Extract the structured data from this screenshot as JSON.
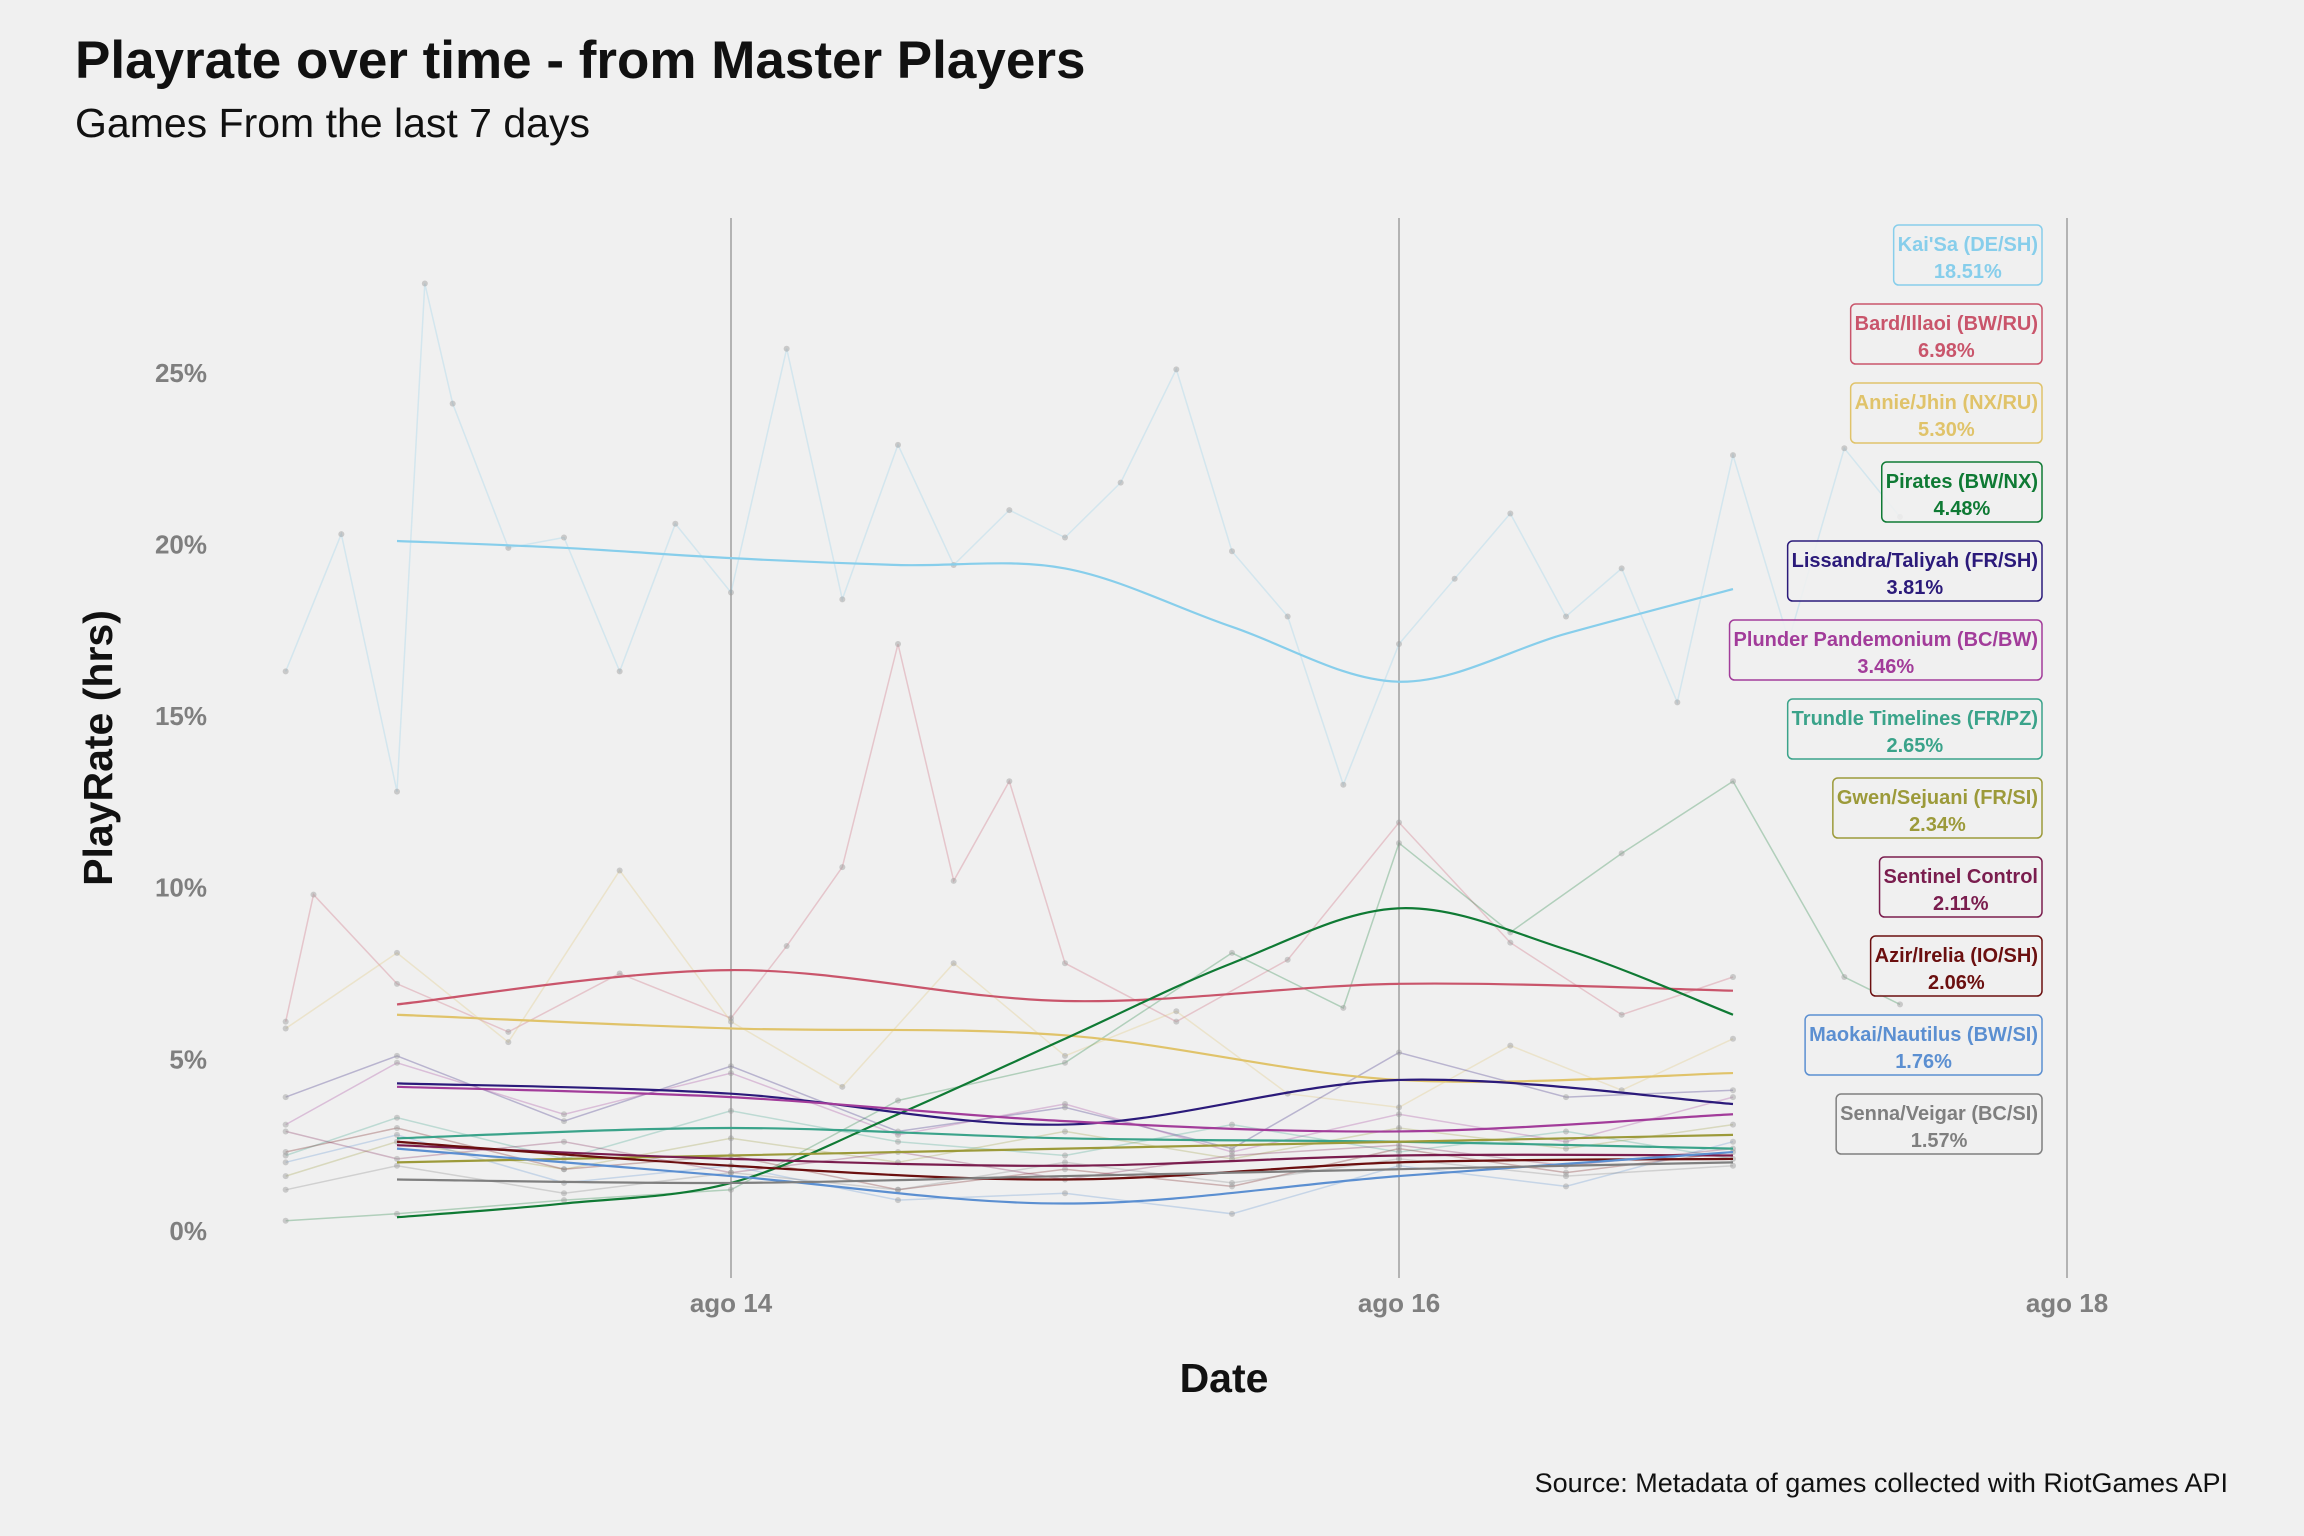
{
  "chart_data": {
    "type": "line",
    "title": "Playrate over time - from Master Players",
    "subtitle": "Games From the last 7 days",
    "caption": "Source: Metadata of games collected with RiotGames API",
    "xlabel": "Date",
    "ylabel": "PlayRate (hrs)",
    "xlim": [
      "2021-08-12T14:00",
      "2021-08-18T12:00"
    ],
    "ylim": [
      -1,
      29
    ],
    "x_ticks": [
      {
        "value": "2021-08-14T00:00",
        "label": "ago 14"
      },
      {
        "value": "2021-08-16T00:00",
        "label": "ago 16"
      },
      {
        "value": "2021-08-18T00:00",
        "label": "ago 18"
      }
    ],
    "y_ticks": [
      {
        "value": 0,
        "label": "0%"
      },
      {
        "value": 5,
        "label": "5%"
      },
      {
        "value": 10,
        "label": "10%"
      },
      {
        "value": 15,
        "label": "15%"
      },
      {
        "value": 20,
        "label": "20%"
      },
      {
        "value": 25,
        "label": "25%"
      }
    ],
    "grid": "vertical major lines only",
    "series": [
      {
        "name": "Kai'Sa (DE/SH)",
        "value_label": "18.51%",
        "color": "#87ceeb",
        "smooth": [
          [
            "2021-08-13T00:00",
            20.1
          ],
          [
            "2021-08-13T12:00",
            19.9
          ],
          [
            "2021-08-14T00:00",
            19.6
          ],
          [
            "2021-08-14T12:00",
            19.4
          ],
          [
            "2021-08-15T00:00",
            19.3
          ],
          [
            "2021-08-15T12:00",
            17.6
          ],
          [
            "2021-08-16T00:00",
            16.0
          ],
          [
            "2021-08-16T12:00",
            17.4
          ],
          [
            "2021-08-17T00:00",
            18.7
          ]
        ],
        "raw": [
          [
            "2021-08-12T16:00",
            16.3
          ],
          [
            "2021-08-12T20:00",
            20.3
          ],
          [
            "2021-08-13T00:00",
            12.8
          ],
          [
            "2021-08-13T02:00",
            27.6
          ],
          [
            "2021-08-13T04:00",
            24.1
          ],
          [
            "2021-08-13T08:00",
            19.9
          ],
          [
            "2021-08-13T12:00",
            20.2
          ],
          [
            "2021-08-13T16:00",
            16.3
          ],
          [
            "2021-08-13T20:00",
            20.6
          ],
          [
            "2021-08-14T00:00",
            18.6
          ],
          [
            "2021-08-14T04:00",
            25.7
          ],
          [
            "2021-08-14T08:00",
            18.4
          ],
          [
            "2021-08-14T12:00",
            22.9
          ],
          [
            "2021-08-14T16:00",
            19.4
          ],
          [
            "2021-08-14T20:00",
            21.0
          ],
          [
            "2021-08-15T00:00",
            20.2
          ],
          [
            "2021-08-15T04:00",
            21.8
          ],
          [
            "2021-08-15T08:00",
            25.1
          ],
          [
            "2021-08-15T12:00",
            19.8
          ],
          [
            "2021-08-15T16:00",
            17.9
          ],
          [
            "2021-08-15T20:00",
            13.0
          ],
          [
            "2021-08-16T00:00",
            17.1
          ],
          [
            "2021-08-16T04:00",
            19.0
          ],
          [
            "2021-08-16T08:00",
            20.9
          ],
          [
            "2021-08-16T12:00",
            17.9
          ],
          [
            "2021-08-16T16:00",
            19.3
          ],
          [
            "2021-08-16T20:00",
            15.4
          ],
          [
            "2021-08-17T00:00",
            22.6
          ],
          [
            "2021-08-17T04:00",
            17.2
          ],
          [
            "2021-08-17T08:00",
            22.8
          ],
          [
            "2021-08-17T12:00",
            20.8
          ]
        ]
      },
      {
        "name": "Bard/Illaoi (BW/RU)",
        "value_label": "6.98%",
        "color": "#c9556b",
        "smooth": [
          [
            "2021-08-13T00:00",
            6.6
          ],
          [
            "2021-08-14T00:00",
            7.6
          ],
          [
            "2021-08-15T00:00",
            6.7
          ],
          [
            "2021-08-16T00:00",
            7.2
          ],
          [
            "2021-08-17T00:00",
            7.0
          ]
        ],
        "raw": [
          [
            "2021-08-12T16:00",
            6.1
          ],
          [
            "2021-08-12T18:00",
            9.8
          ],
          [
            "2021-08-13T00:00",
            7.2
          ],
          [
            "2021-08-13T08:00",
            5.8
          ],
          [
            "2021-08-13T16:00",
            7.5
          ],
          [
            "2021-08-14T00:00",
            6.2
          ],
          [
            "2021-08-14T04:00",
            8.3
          ],
          [
            "2021-08-14T08:00",
            10.6
          ],
          [
            "2021-08-14T12:00",
            17.1
          ],
          [
            "2021-08-14T16:00",
            10.2
          ],
          [
            "2021-08-14T20:00",
            13.1
          ],
          [
            "2021-08-15T00:00",
            7.8
          ],
          [
            "2021-08-15T08:00",
            6.1
          ],
          [
            "2021-08-15T16:00",
            7.9
          ],
          [
            "2021-08-16T00:00",
            11.9
          ],
          [
            "2021-08-16T08:00",
            8.4
          ],
          [
            "2021-08-16T16:00",
            6.3
          ],
          [
            "2021-08-17T00:00",
            7.4
          ]
        ]
      },
      {
        "name": "Annie/Jhin (NX/RU)",
        "value_label": "5.30%",
        "color": "#e0c36a",
        "smooth": [
          [
            "2021-08-13T00:00",
            6.3
          ],
          [
            "2021-08-14T00:00",
            5.9
          ],
          [
            "2021-08-15T00:00",
            5.7
          ],
          [
            "2021-08-16T00:00",
            4.4
          ],
          [
            "2021-08-17T00:00",
            4.6
          ]
        ],
        "raw": [
          [
            "2021-08-12T16:00",
            5.9
          ],
          [
            "2021-08-13T00:00",
            8.1
          ],
          [
            "2021-08-13T08:00",
            5.5
          ],
          [
            "2021-08-13T16:00",
            10.5
          ],
          [
            "2021-08-14T00:00",
            6.1
          ],
          [
            "2021-08-14T08:00",
            4.2
          ],
          [
            "2021-08-14T16:00",
            7.8
          ],
          [
            "2021-08-15T00:00",
            5.1
          ],
          [
            "2021-08-15T08:00",
            6.4
          ],
          [
            "2021-08-15T16:00",
            4.0
          ],
          [
            "2021-08-16T00:00",
            3.6
          ],
          [
            "2021-08-16T08:00",
            5.4
          ],
          [
            "2021-08-16T16:00",
            4.1
          ],
          [
            "2021-08-17T00:00",
            5.6
          ]
        ]
      },
      {
        "name": "Pirates (BW/NX)",
        "value_label": "4.48%",
        "color": "#0f7a34",
        "smooth": [
          [
            "2021-08-13T00:00",
            0.4
          ],
          [
            "2021-08-13T12:00",
            0.8
          ],
          [
            "2021-08-14T00:00",
            1.4
          ],
          [
            "2021-08-14T12:00",
            3.4
          ],
          [
            "2021-08-15T00:00",
            5.6
          ],
          [
            "2021-08-15T12:00",
            7.8
          ],
          [
            "2021-08-16T00:00",
            9.4
          ],
          [
            "2021-08-16T12:00",
            8.2
          ],
          [
            "2021-08-17T00:00",
            6.3
          ]
        ],
        "raw": [
          [
            "2021-08-12T16:00",
            0.3
          ],
          [
            "2021-08-13T00:00",
            0.5
          ],
          [
            "2021-08-13T12:00",
            0.9
          ],
          [
            "2021-08-14T00:00",
            1.2
          ],
          [
            "2021-08-14T12:00",
            3.8
          ],
          [
            "2021-08-15T00:00",
            4.9
          ],
          [
            "2021-08-15T12:00",
            8.1
          ],
          [
            "2021-08-15T20:00",
            6.5
          ],
          [
            "2021-08-16T00:00",
            11.3
          ],
          [
            "2021-08-16T08:00",
            8.7
          ],
          [
            "2021-08-16T16:00",
            11.0
          ],
          [
            "2021-08-17T00:00",
            13.1
          ],
          [
            "2021-08-17T08:00",
            7.4
          ],
          [
            "2021-08-17T12:00",
            6.6
          ]
        ]
      },
      {
        "name": "Lissandra/Taliyah (FR/SH)",
        "value_label": "3.81%",
        "color": "#2b1a7a",
        "smooth": [
          [
            "2021-08-13T00:00",
            4.3
          ],
          [
            "2021-08-14T00:00",
            4.0
          ],
          [
            "2021-08-15T00:00",
            3.1
          ],
          [
            "2021-08-16T00:00",
            4.4
          ],
          [
            "2021-08-17T00:00",
            3.7
          ]
        ],
        "raw": [
          [
            "2021-08-12T16:00",
            3.9
          ],
          [
            "2021-08-13T00:00",
            5.1
          ],
          [
            "2021-08-13T12:00",
            3.2
          ],
          [
            "2021-08-14T00:00",
            4.8
          ],
          [
            "2021-08-14T12:00",
            2.9
          ],
          [
            "2021-08-15T00:00",
            3.6
          ],
          [
            "2021-08-15T12:00",
            2.4
          ],
          [
            "2021-08-16T00:00",
            5.2
          ],
          [
            "2021-08-16T12:00",
            3.9
          ],
          [
            "2021-08-17T00:00",
            4.1
          ]
        ]
      },
      {
        "name": "Plunder Pandemonium (BC/BW)",
        "value_label": "3.46%",
        "color": "#a23c9a",
        "smooth": [
          [
            "2021-08-13T00:00",
            4.2
          ],
          [
            "2021-08-14T00:00",
            3.9
          ],
          [
            "2021-08-15T00:00",
            3.2
          ],
          [
            "2021-08-16T00:00",
            2.9
          ],
          [
            "2021-08-17T00:00",
            3.4
          ]
        ],
        "raw": [
          [
            "2021-08-12T16:00",
            3.1
          ],
          [
            "2021-08-13T00:00",
            4.9
          ],
          [
            "2021-08-13T12:00",
            3.4
          ],
          [
            "2021-08-14T00:00",
            4.6
          ],
          [
            "2021-08-14T12:00",
            2.8
          ],
          [
            "2021-08-15T00:00",
            3.7
          ],
          [
            "2021-08-15T12:00",
            2.3
          ],
          [
            "2021-08-16T00:00",
            3.4
          ],
          [
            "2021-08-16T12:00",
            2.6
          ],
          [
            "2021-08-17T00:00",
            3.9
          ]
        ]
      },
      {
        "name": "Trundle Timelines (FR/PZ)",
        "value_label": "2.65%",
        "color": "#3aa38a",
        "smooth": [
          [
            "2021-08-13T00:00",
            2.7
          ],
          [
            "2021-08-14T00:00",
            3.0
          ],
          [
            "2021-08-15T00:00",
            2.7
          ],
          [
            "2021-08-16T00:00",
            2.6
          ],
          [
            "2021-08-17T00:00",
            2.4
          ]
        ],
        "raw": [
          [
            "2021-08-12T16:00",
            2.2
          ],
          [
            "2021-08-13T00:00",
            3.3
          ],
          [
            "2021-08-13T12:00",
            2.1
          ],
          [
            "2021-08-14T00:00",
            3.5
          ],
          [
            "2021-08-14T12:00",
            2.6
          ],
          [
            "2021-08-15T00:00",
            2.2
          ],
          [
            "2021-08-15T12:00",
            3.1
          ],
          [
            "2021-08-16T00:00",
            2.3
          ],
          [
            "2021-08-16T12:00",
            2.9
          ],
          [
            "2021-08-17T00:00",
            2.1
          ]
        ]
      },
      {
        "name": "Gwen/Sejuani (FR/SI)",
        "value_label": "2.34%",
        "color": "#9c9a3a",
        "smooth": [
          [
            "2021-08-13T00:00",
            2.0
          ],
          [
            "2021-08-14T00:00",
            2.2
          ],
          [
            "2021-08-15T00:00",
            2.4
          ],
          [
            "2021-08-16T00:00",
            2.6
          ],
          [
            "2021-08-17T00:00",
            2.8
          ]
        ],
        "raw": [
          [
            "2021-08-12T16:00",
            1.6
          ],
          [
            "2021-08-13T00:00",
            2.6
          ],
          [
            "2021-08-13T12:00",
            1.8
          ],
          [
            "2021-08-14T00:00",
            2.7
          ],
          [
            "2021-08-14T12:00",
            2.0
          ],
          [
            "2021-08-15T00:00",
            2.9
          ],
          [
            "2021-08-15T12:00",
            2.1
          ],
          [
            "2021-08-16T00:00",
            3.0
          ],
          [
            "2021-08-16T12:00",
            2.4
          ],
          [
            "2021-08-17T00:00",
            3.1
          ]
        ]
      },
      {
        "name": "Sentinel Control",
        "value_label": "2.11%",
        "color": "#7a1d4e",
        "smooth": [
          [
            "2021-08-13T00:00",
            2.5
          ],
          [
            "2021-08-14T00:00",
            2.1
          ],
          [
            "2021-08-15T00:00",
            1.9
          ],
          [
            "2021-08-16T00:00",
            2.2
          ],
          [
            "2021-08-17T00:00",
            2.2
          ]
        ],
        "raw": [
          [
            "2021-08-12T16:00",
            2.9
          ],
          [
            "2021-08-13T00:00",
            2.1
          ],
          [
            "2021-08-13T12:00",
            2.6
          ],
          [
            "2021-08-14T00:00",
            1.7
          ],
          [
            "2021-08-14T12:00",
            2.3
          ],
          [
            "2021-08-15T00:00",
            1.5
          ],
          [
            "2021-08-15T12:00",
            2.2
          ],
          [
            "2021-08-16T00:00",
            2.5
          ],
          [
            "2021-08-16T12:00",
            1.9
          ],
          [
            "2021-08-17T00:00",
            2.4
          ]
        ]
      },
      {
        "name": "Azir/Irelia (IO/SH)",
        "value_label": "2.06%",
        "color": "#6b0f0f",
        "smooth": [
          [
            "2021-08-13T00:00",
            2.6
          ],
          [
            "2021-08-14T00:00",
            1.9
          ],
          [
            "2021-08-15T00:00",
            1.5
          ],
          [
            "2021-08-16T00:00",
            2.0
          ],
          [
            "2021-08-17T00:00",
            2.1
          ]
        ],
        "raw": [
          [
            "2021-08-12T16:00",
            2.3
          ],
          [
            "2021-08-13T00:00",
            3.0
          ],
          [
            "2021-08-13T12:00",
            1.8
          ],
          [
            "2021-08-14T00:00",
            2.2
          ],
          [
            "2021-08-14T12:00",
            1.2
          ],
          [
            "2021-08-15T00:00",
            1.8
          ],
          [
            "2021-08-15T12:00",
            1.3
          ],
          [
            "2021-08-16T00:00",
            2.4
          ],
          [
            "2021-08-16T12:00",
            1.7
          ],
          [
            "2021-08-17T00:00",
            2.3
          ]
        ]
      },
      {
        "name": "Maokai/Nautilus (BW/SI)",
        "value_label": "1.76%",
        "color": "#5b8fd1",
        "smooth": [
          [
            "2021-08-13T00:00",
            2.4
          ],
          [
            "2021-08-14T00:00",
            1.6
          ],
          [
            "2021-08-15T00:00",
            0.8
          ],
          [
            "2021-08-16T00:00",
            1.6
          ],
          [
            "2021-08-17T00:00",
            2.3
          ]
        ],
        "raw": [
          [
            "2021-08-12T16:00",
            2.0
          ],
          [
            "2021-08-13T00:00",
            2.8
          ],
          [
            "2021-08-13T12:00",
            1.4
          ],
          [
            "2021-08-14T00:00",
            1.9
          ],
          [
            "2021-08-14T12:00",
            0.9
          ],
          [
            "2021-08-15T00:00",
            1.1
          ],
          [
            "2021-08-15T12:00",
            0.5
          ],
          [
            "2021-08-16T00:00",
            1.9
          ],
          [
            "2021-08-16T12:00",
            1.3
          ],
          [
            "2021-08-17T00:00",
            2.6
          ]
        ]
      },
      {
        "name": "Senna/Veigar (BC/SI)",
        "value_label": "1.57%",
        "color": "#7f7f7f",
        "smooth": [
          [
            "2021-08-13T00:00",
            1.5
          ],
          [
            "2021-08-14T00:00",
            1.4
          ],
          [
            "2021-08-15T00:00",
            1.6
          ],
          [
            "2021-08-16T00:00",
            1.8
          ],
          [
            "2021-08-17T00:00",
            2.0
          ]
        ],
        "raw": [
          [
            "2021-08-12T16:00",
            1.2
          ],
          [
            "2021-08-13T00:00",
            1.9
          ],
          [
            "2021-08-13T12:00",
            1.1
          ],
          [
            "2021-08-14T00:00",
            1.7
          ],
          [
            "2021-08-14T12:00",
            1.2
          ],
          [
            "2021-08-15T00:00",
            2.0
          ],
          [
            "2021-08-15T12:00",
            1.4
          ],
          [
            "2021-08-16T00:00",
            2.1
          ],
          [
            "2021-08-16T12:00",
            1.6
          ],
          [
            "2021-08-17T00:00",
            1.9
          ]
        ]
      }
    ]
  }
}
